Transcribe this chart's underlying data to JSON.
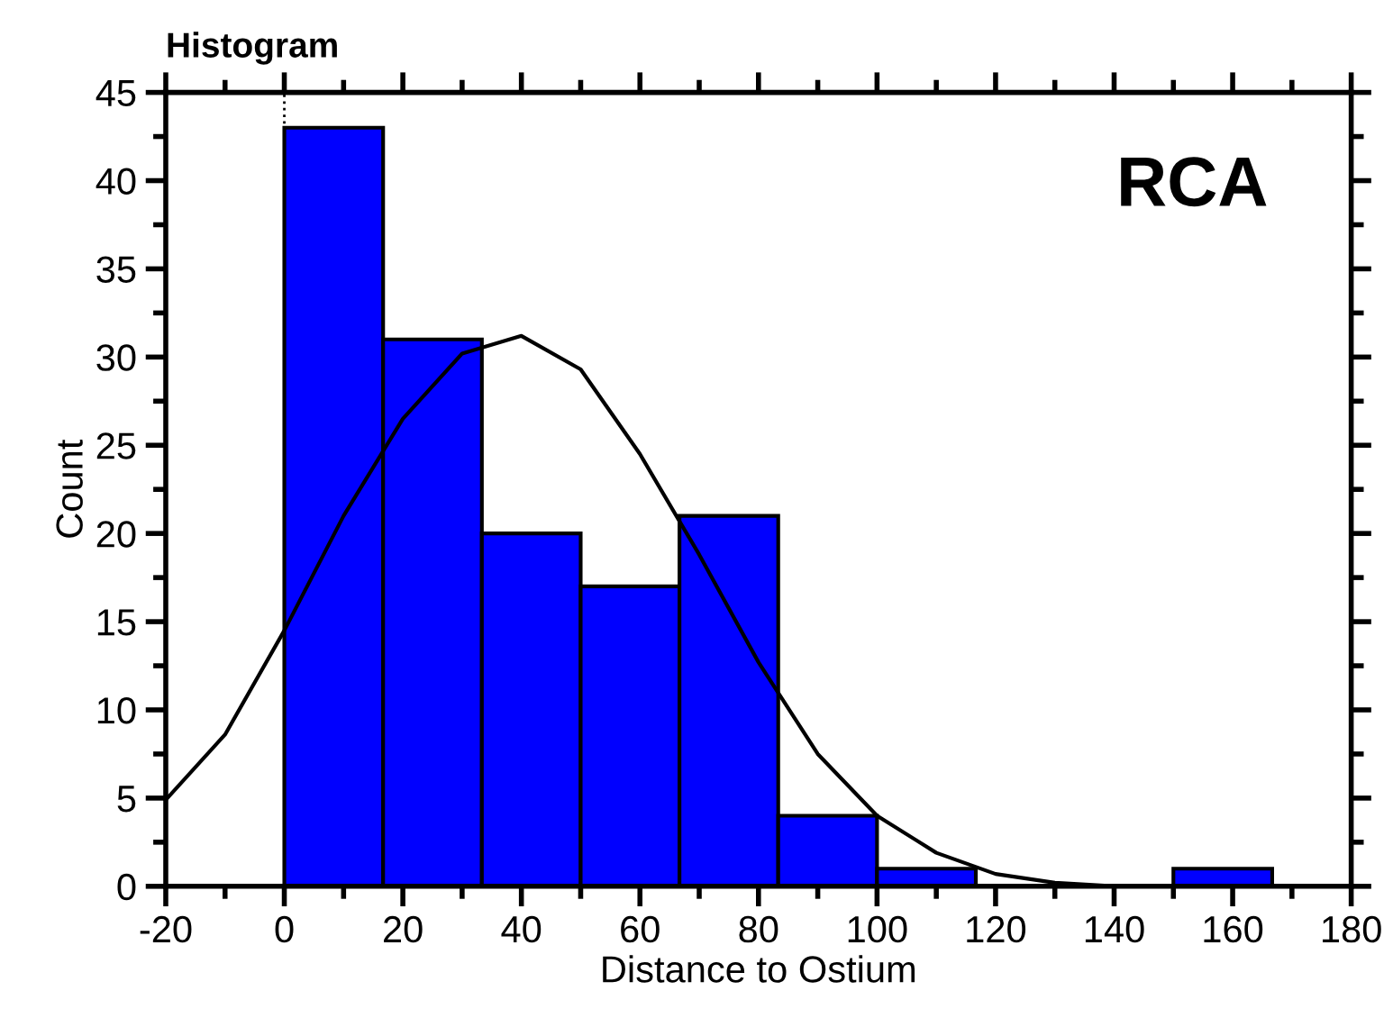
{
  "chart_data": {
    "type": "histogram",
    "title": "Histogram",
    "xlabel": "Distance to Ostium",
    "ylabel": "Count",
    "annotations": [
      "RCA"
    ],
    "bins": [
      0,
      16.67,
      33.33,
      50,
      66.67,
      83.33,
      100,
      116.67,
      133.33,
      150,
      166.67
    ],
    "values": [
      43,
      31,
      20,
      17,
      21,
      4,
      1,
      0,
      0,
      1
    ],
    "color": "#0000ff",
    "series": [
      {
        "type": "line",
        "color": "#000000",
        "x": [
          -20,
          -10,
          0,
          10,
          20,
          30,
          40,
          50,
          60,
          70,
          80,
          90,
          100,
          110,
          120,
          130,
          140
        ],
        "values": [
          4.9,
          8.6,
          14.5,
          21,
          26.5,
          30.2,
          31.2,
          29.3,
          24.5,
          18.8,
          12.7,
          7.5,
          4.0,
          1.9,
          0.7,
          0.2,
          0
        ]
      }
    ],
    "ref_lines": [
      {
        "axis": "x",
        "value": 0,
        "line_style": "dotted",
        "color": "#000000"
      }
    ],
    "xlim": [
      -20,
      180
    ],
    "xticks": [
      -20,
      0,
      20,
      40,
      60,
      80,
      100,
      120,
      140,
      160,
      180
    ],
    "ylim": [
      0,
      45
    ],
    "yticks": [
      0,
      5,
      10,
      15,
      20,
      25,
      30,
      35,
      40,
      45
    ],
    "grid": false,
    "legend": false
  }
}
